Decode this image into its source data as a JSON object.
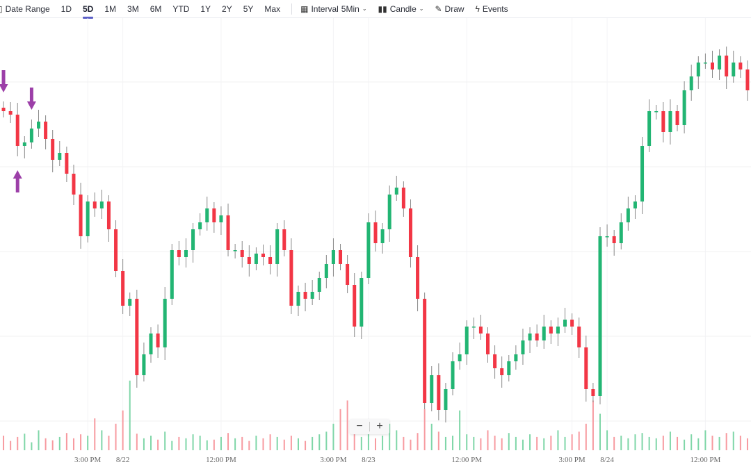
{
  "toolbar": {
    "date_range": "Date Range",
    "ranges": [
      "1D",
      "5D",
      "1M",
      "3M",
      "6M",
      "YTD",
      "1Y",
      "2Y",
      "5Y",
      "Max"
    ],
    "active_range": "5D",
    "interval_label": "Interval",
    "interval_value": "5Min",
    "chart_type": "Candle",
    "draw": "Draw",
    "events": "Events"
  },
  "zoom": {
    "minus": "−",
    "plus": "+"
  },
  "colors": {
    "up": "#22b573",
    "down": "#f23645",
    "up_vol": "#7fd6a8",
    "down_vol": "#f79aa0",
    "arrow": "#9c3fa8",
    "accent": "#5b5fc7"
  },
  "chart_data": {
    "type": "candlestick",
    "ylim": [
      5.2,
      67.4
    ],
    "gridlines": [
      9.4,
      21.6,
      33.8,
      46,
      58.2
    ],
    "first_open": 54.5,
    "close": [
      54,
      53.5,
      49,
      49.5,
      51.5,
      52.5,
      50,
      47,
      48,
      45,
      42,
      36,
      41,
      40,
      41,
      37,
      31,
      26,
      27,
      16,
      19,
      22,
      20,
      27,
      34,
      33,
      34,
      37,
      38,
      40,
      38,
      39,
      34,
      34,
      33,
      32,
      33.5,
      33,
      32,
      37,
      34,
      26,
      28,
      27,
      28,
      30,
      32,
      34,
      32,
      29,
      23,
      30,
      38,
      35,
      37,
      42,
      43,
      40,
      33,
      27,
      12,
      16,
      11,
      14,
      18,
      19,
      23,
      23,
      22,
      19,
      17,
      16,
      18,
      19,
      21,
      22,
      21,
      23,
      22,
      23,
      24,
      23,
      20,
      14,
      13,
      36,
      36,
      35,
      38,
      40,
      41,
      49,
      54,
      54,
      51,
      54,
      52,
      57,
      59,
      61,
      61,
      60,
      62,
      59,
      61,
      60,
      57
    ],
    "volume": [
      22,
      14,
      20,
      25,
      12,
      30,
      18,
      15,
      20,
      26,
      18,
      24,
      22,
      48,
      30,
      22,
      40,
      60,
      105,
      25,
      18,
      22,
      16,
      28,
      14,
      20,
      18,
      24,
      22,
      15,
      16,
      20,
      26,
      18,
      20,
      14,
      22,
      18,
      24,
      20,
      16,
      22,
      18,
      14,
      20,
      24,
      28,
      40,
      62,
      75,
      30,
      20,
      26,
      18,
      22,
      40,
      30,
      20,
      16,
      26,
      62,
      40,
      28,
      20,
      22,
      60,
      24,
      20,
      18,
      30,
      22,
      18,
      26,
      20,
      16,
      24,
      20,
      18,
      22,
      30,
      20,
      24,
      28,
      40,
      75,
      55,
      30,
      20,
      22,
      18,
      24,
      26,
      20,
      18,
      22,
      28,
      20,
      16,
      24,
      18,
      30,
      22,
      20,
      26,
      28,
      22,
      18
    ],
    "x_ticks": [
      {
        "index": 12,
        "label": "3:00 PM"
      },
      {
        "index": 17,
        "label": "8/22"
      },
      {
        "index": 31,
        "label": "12:00 PM"
      },
      {
        "index": 47,
        "label": "3:00 PM"
      },
      {
        "index": 52,
        "label": "8/23"
      },
      {
        "index": 66,
        "label": "12:00 PM"
      },
      {
        "index": 81,
        "label": "3:00 PM"
      },
      {
        "index": 86,
        "label": "8/24"
      },
      {
        "index": 100,
        "label": "12:00 PM"
      }
    ],
    "markers": [
      {
        "index": 0,
        "direction": "down"
      },
      {
        "index": 2,
        "direction": "up"
      },
      {
        "index": 4,
        "direction": "down"
      }
    ]
  }
}
